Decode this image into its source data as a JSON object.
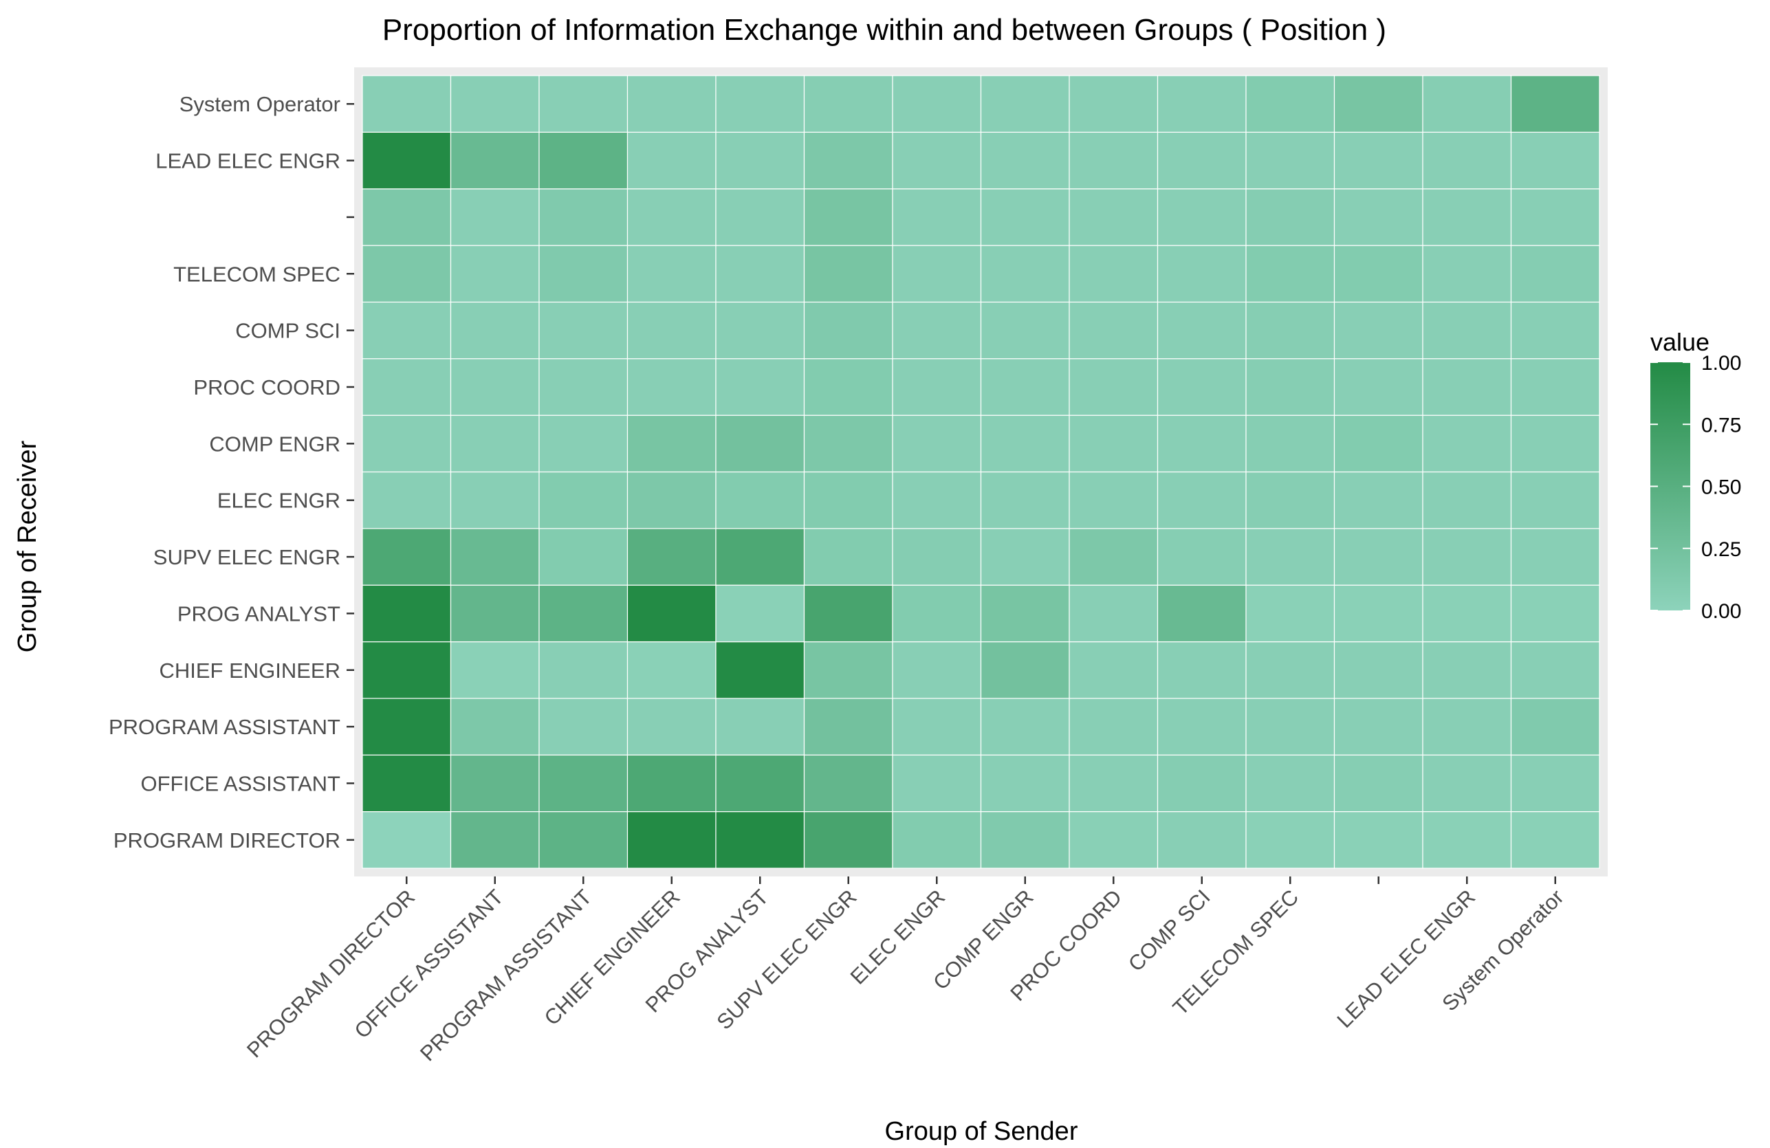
{
  "chart_data": {
    "type": "heatmap",
    "title": "Proportion of  Information Exchange within and between Groups ( Position )",
    "xlabel": "Group of Sender",
    "ylabel": "Group of Receiver",
    "x_categories": [
      "PROGRAM DIRECTOR",
      "OFFICE ASSISTANT",
      "PROGRAM ASSISTANT",
      "CHIEF ENGINEER",
      "PROG ANALYST",
      "SUPV ELEC ENGR",
      "ELEC ENGR",
      "COMP ENGR",
      "PROC COORD",
      "COMP SCI",
      "TELECOM SPEC",
      "",
      "LEAD ELEC ENGR",
      "System Operator"
    ],
    "y_categories": [
      "PROGRAM DIRECTOR",
      "OFFICE ASSISTANT",
      "PROGRAM ASSISTANT",
      "CHIEF ENGINEER",
      "PROG ANALYST",
      "SUPV ELEC ENGR",
      "ELEC ENGR",
      "COMP ENGR",
      "PROC COORD",
      "COMP SCI",
      "TELECOM SPEC",
      "",
      "LEAD ELEC ENGR",
      "System Operator"
    ],
    "values": [
      [
        0.0,
        0.4,
        0.45,
        1.0,
        1.0,
        0.65,
        0.1,
        0.12,
        0.04,
        0.05,
        0.03,
        0.03,
        0.03,
        0.03
      ],
      [
        1.0,
        0.4,
        0.45,
        0.6,
        0.6,
        0.4,
        0.05,
        0.05,
        0.05,
        0.08,
        0.05,
        0.07,
        0.05,
        0.05
      ],
      [
        1.0,
        0.15,
        0.05,
        0.05,
        0.05,
        0.25,
        0.05,
        0.05,
        0.05,
        0.05,
        0.05,
        0.05,
        0.05,
        0.12
      ],
      [
        1.0,
        0.03,
        0.05,
        0.03,
        1.0,
        0.2,
        0.05,
        0.25,
        0.05,
        0.05,
        0.05,
        0.05,
        0.05,
        0.05
      ],
      [
        1.0,
        0.4,
        0.45,
        1.0,
        0.03,
        0.65,
        0.1,
        0.2,
        0.05,
        0.35,
        0.03,
        0.03,
        0.03,
        0.03
      ],
      [
        0.6,
        0.35,
        0.1,
        0.5,
        0.6,
        0.1,
        0.08,
        0.05,
        0.15,
        0.07,
        0.05,
        0.05,
        0.05,
        0.05
      ],
      [
        0.05,
        0.05,
        0.1,
        0.15,
        0.1,
        0.1,
        0.05,
        0.05,
        0.05,
        0.05,
        0.07,
        0.05,
        0.05,
        0.05
      ],
      [
        0.05,
        0.05,
        0.05,
        0.2,
        0.25,
        0.15,
        0.05,
        0.05,
        0.05,
        0.05,
        0.07,
        0.1,
        0.05,
        0.05
      ],
      [
        0.05,
        0.05,
        0.05,
        0.05,
        0.05,
        0.1,
        0.05,
        0.05,
        0.05,
        0.05,
        0.07,
        0.05,
        0.05,
        0.05
      ],
      [
        0.05,
        0.05,
        0.05,
        0.05,
        0.05,
        0.12,
        0.05,
        0.05,
        0.05,
        0.05,
        0.07,
        0.05,
        0.05,
        0.05
      ],
      [
        0.15,
        0.05,
        0.12,
        0.05,
        0.05,
        0.2,
        0.05,
        0.05,
        0.05,
        0.05,
        0.1,
        0.1,
        0.05,
        0.08
      ],
      [
        0.15,
        0.05,
        0.12,
        0.05,
        0.05,
        0.2,
        0.05,
        0.05,
        0.05,
        0.05,
        0.08,
        0.05,
        0.05,
        0.05
      ],
      [
        1.0,
        0.35,
        0.45,
        0.05,
        0.05,
        0.15,
        0.05,
        0.05,
        0.05,
        0.05,
        0.05,
        0.05,
        0.05,
        0.05
      ],
      [
        0.05,
        0.05,
        0.05,
        0.05,
        0.05,
        0.07,
        0.05,
        0.05,
        0.05,
        0.05,
        0.1,
        0.2,
        0.07,
        0.45
      ]
    ],
    "value_range": [
      0,
      1
    ],
    "legend": {
      "title": "value",
      "placement": "right",
      "tick_values": [
        0,
        0.25,
        0.5,
        0.75,
        1
      ],
      "tick_labels": [
        "0.00",
        "0.25",
        "0.50",
        "0.75",
        "1.00"
      ]
    },
    "colors": {
      "low": "#8dd3bb",
      "high": "#238b45",
      "panel": "#ebebeb"
    },
    "grid": true
  }
}
